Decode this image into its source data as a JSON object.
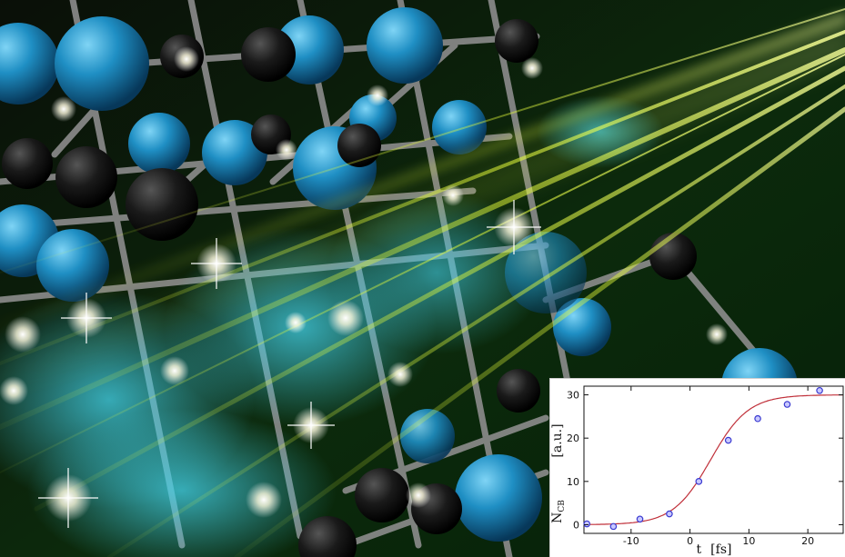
{
  "scene": {
    "colors": {
      "atom_blue": "#1f8fc4",
      "atom_black": "#151515",
      "bond_gray": "#8c8c8c",
      "beam_yellow": "#e8ff3a",
      "glow_cyan": "#3fd0e8",
      "background_green": "#0b2a0b"
    }
  },
  "chart_data": {
    "type": "scatter",
    "xlabel": "t",
    "xunit": "[fs]",
    "ylabel": "N",
    "ylabel_sub": "CB",
    "yunit": "[a.u.]",
    "xlim": [
      -18,
      26
    ],
    "ylim": [
      -2,
      32
    ],
    "x_ticks": [
      -10,
      0,
      10,
      20
    ],
    "y_ticks": [
      0,
      10,
      20,
      30
    ],
    "points": [
      {
        "x": -17.5,
        "y": 0.2
      },
      {
        "x": -13.0,
        "y": -0.4
      },
      {
        "x": -8.5,
        "y": 1.3
      },
      {
        "x": -3.5,
        "y": 2.5
      },
      {
        "x": 1.5,
        "y": 10.0
      },
      {
        "x": 6.5,
        "y": 19.5
      },
      {
        "x": 11.5,
        "y": 24.5
      },
      {
        "x": 16.5,
        "y": 27.8
      },
      {
        "x": 22.0,
        "y": 31.0
      }
    ],
    "fit": {
      "amplitude": 30,
      "center": 3.5,
      "width": 3.2
    },
    "colors": {
      "points": "#3a3ad0",
      "fit": "#c0303a"
    }
  }
}
